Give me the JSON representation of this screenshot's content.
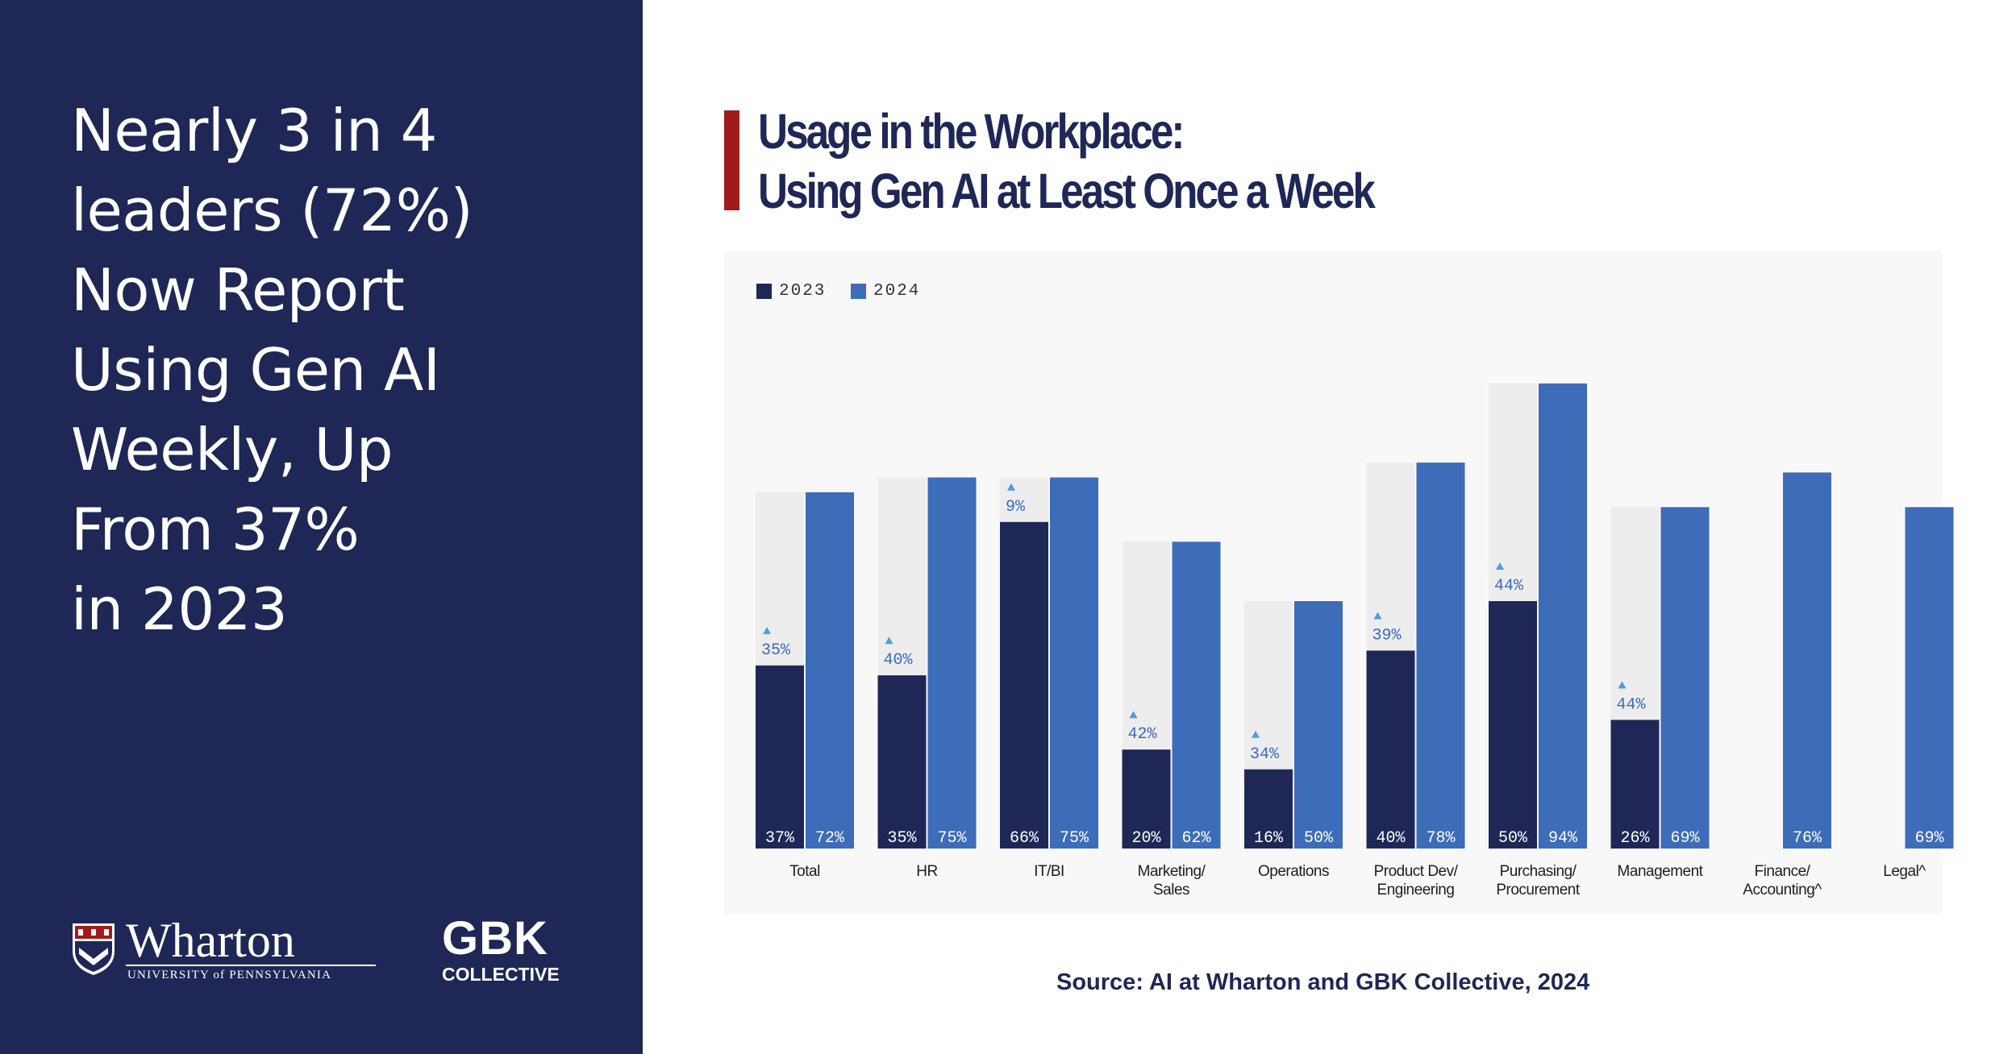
{
  "headline_lines": [
    "Nearly 3 in 4",
    "leaders (72%)",
    "Now Report",
    "Using Gen AI",
    "Weekly, Up",
    "From 37%",
    "in 2023"
  ],
  "logos": {
    "wharton": {
      "name": "Wharton",
      "subtitle": "UNIVERSITY of PENNSYLVANIA"
    },
    "gbk": {
      "name": "GBK",
      "subtitle": "COLLECTIVE"
    }
  },
  "source": "Source: AI at Wharton and GBK Collective, 2024",
  "colors": {
    "panel_bg": "#1f2757",
    "series_2023": "#1f2757",
    "series_2024": "#3d6cb9",
    "ghost_bar": "#eeedee",
    "accent_bar": "#a01c1c",
    "delta_arrow": "#4d9de0"
  },
  "chart_data": {
    "type": "bar",
    "title": "Usage in the Workplace: Using Gen AI at Least Once a Week",
    "title_lines": [
      "Usage in the Workplace:",
      "Using Gen AI at Least Once a Week"
    ],
    "categories": [
      [
        "Total"
      ],
      [
        "HR"
      ],
      [
        "IT/BI"
      ],
      [
        "Marketing/",
        "Sales"
      ],
      [
        "Operations"
      ],
      [
        "Product Dev/",
        "Engineering"
      ],
      [
        "Purchasing/",
        "Procurement"
      ],
      [
        "Management"
      ],
      [
        "Finance/",
        "Accounting^"
      ],
      [
        "Legal^"
      ]
    ],
    "series": [
      {
        "name": "2023",
        "values": [
          37,
          35,
          66,
          20,
          16,
          40,
          50,
          26,
          null,
          null
        ]
      },
      {
        "name": "2024",
        "values": [
          72,
          75,
          75,
          62,
          50,
          78,
          94,
          69,
          76,
          69
        ]
      }
    ],
    "change_labels": [
      "35%",
      "40%",
      "9%",
      "42%",
      "34%",
      "39%",
      "44%",
      "44%",
      null,
      null
    ],
    "legend": "top-left",
    "grid": false
  }
}
